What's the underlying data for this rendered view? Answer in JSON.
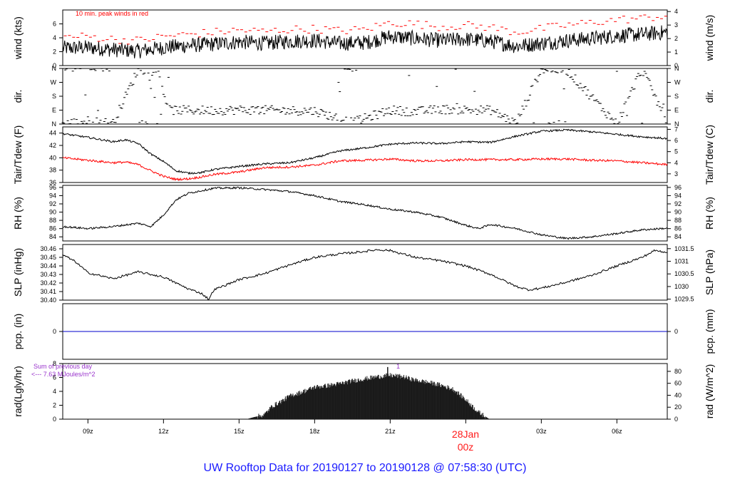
{
  "title": "UW Rooftop Data for 20190127  to  20190128 @ 07:58:30  (UTC)",
  "colors": {
    "line": "#000000",
    "peak": "#ff0000",
    "dew": "#ff0000",
    "precip": "#0000cc",
    "title": "#1a1aff",
    "rad_note": "#9933cc",
    "date": "#ff1a1a"
  },
  "x_axis": {
    "start_hour": 8,
    "end_hour": 32,
    "ticks": [
      {
        "hour": 9,
        "label": "09z"
      },
      {
        "hour": 12,
        "label": "12z"
      },
      {
        "hour": 15,
        "label": "15z"
      },
      {
        "hour": 18,
        "label": "18z"
      },
      {
        "hour": 21,
        "label": "21z"
      },
      {
        "hour": 24,
        "label": ""
      },
      {
        "hour": 27,
        "label": "03z"
      },
      {
        "hour": 30,
        "label": "06z"
      }
    ],
    "date_label": "28Jan",
    "date_sub": "00z"
  },
  "chart_data": [
    {
      "type": "line",
      "panel": "wind",
      "ylabel_left": "wind (kts)",
      "ylabel_right": "wind (m/s)",
      "yticks_left": [
        0,
        2,
        4,
        6
      ],
      "yticks_right": [
        0,
        1,
        2,
        3,
        4
      ],
      "ylim": [
        0,
        8
      ],
      "annotation": "10 min. peak winds in red",
      "series": [
        {
          "role": "wind",
          "x": [
            8,
            9,
            10,
            11,
            12,
            13,
            14,
            15,
            16,
            17,
            18,
            19,
            20,
            21,
            22,
            23,
            24,
            25,
            26,
            27,
            28,
            29,
            30,
            31,
            32
          ],
          "y": [
            2.5,
            2.6,
            2.3,
            2.1,
            2.6,
            2.9,
            3.1,
            3.4,
            3.2,
            3.5,
            3.6,
            3.2,
            3.3,
            4.2,
            3.9,
            3.6,
            3.8,
            3.5,
            2.8,
            3.2,
            3.6,
            3.9,
            4.3,
            4.5,
            4.8
          ]
        },
        {
          "role": "peak",
          "x": [
            8,
            9,
            10,
            11,
            12,
            13,
            14,
            15,
            16,
            17,
            18,
            19,
            20,
            21,
            22,
            23,
            24,
            25,
            26,
            27,
            28,
            29,
            30,
            31,
            32
          ],
          "y": [
            4.1,
            4.2,
            3.8,
            3.6,
            4.2,
            4.5,
            4.8,
            5.1,
            4.9,
            5.2,
            5.3,
            5.0,
            5.2,
            6.2,
            6.0,
            5.6,
            5.8,
            5.5,
            4.8,
            5.3,
            5.8,
            6.2,
            6.6,
            6.8,
            7.2
          ]
        }
      ]
    },
    {
      "type": "scatter",
      "panel": "dir",
      "ylabel_left": "dir.",
      "ylabel_right": "dir.",
      "ytick_labels": [
        "N",
        "E",
        "S",
        "W",
        "N"
      ],
      "ylim": [
        0,
        360
      ]
    },
    {
      "type": "line",
      "panel": "temp",
      "ylabel_left": "Tair/Tdew (F)",
      "ylabel_right": "Tair/Tdew (C)",
      "yticks_left": [
        36,
        38,
        40,
        42,
        44
      ],
      "yticks_right": [
        3,
        4,
        5,
        6,
        7
      ],
      "ylim": [
        36,
        45
      ],
      "series": [
        {
          "role": "air",
          "x": [
            8,
            9,
            10,
            10.5,
            11,
            11.5,
            12,
            12.5,
            13,
            13.5,
            14,
            15,
            16,
            17,
            18,
            19,
            20,
            21,
            22,
            23,
            24,
            25,
            26,
            27,
            28,
            29,
            30,
            31,
            32
          ],
          "y": [
            43.9,
            43.3,
            42.6,
            42.9,
            42.3,
            40.6,
            39.4,
            37.9,
            37.5,
            37.6,
            38.1,
            38.6,
            39.0,
            39.2,
            40.0,
            41.1,
            41.6,
            42.2,
            42.4,
            42.3,
            42.6,
            42.5,
            43.5,
            44.3,
            44.5,
            44.2,
            43.8,
            43.4,
            43.1
          ]
        },
        {
          "role": "dew",
          "x": [
            8,
            9,
            10,
            10.5,
            11,
            11.5,
            12,
            12.5,
            13,
            13.5,
            14,
            15,
            16,
            17,
            18,
            19,
            20,
            21,
            22,
            23,
            24,
            25,
            26,
            27,
            28,
            29,
            30,
            31,
            32
          ],
          "y": [
            40.0,
            39.6,
            39.2,
            39.3,
            38.9,
            37.9,
            37.0,
            36.5,
            36.6,
            36.9,
            37.3,
            37.7,
            38.4,
            38.5,
            38.8,
            39.5,
            39.6,
            39.8,
            39.5,
            39.5,
            39.7,
            39.7,
            39.7,
            39.8,
            39.8,
            39.6,
            39.5,
            39.2,
            38.9
          ]
        }
      ]
    },
    {
      "type": "line",
      "panel": "rh",
      "ylabel_left": "RH (%)",
      "ylabel_right": "RH (%)",
      "yticks": [
        84,
        86,
        88,
        90,
        92,
        94,
        96
      ],
      "ylim": [
        83,
        96.5
      ],
      "series": [
        {
          "role": "rh",
          "x": [
            8,
            9,
            10,
            11,
            11.5,
            12,
            12.5,
            13,
            13.5,
            14,
            15,
            16,
            17,
            18,
            19,
            20,
            21,
            22,
            23,
            24,
            24.5,
            25,
            26,
            27,
            28,
            29,
            30,
            31,
            32
          ],
          "y": [
            86.5,
            86.0,
            86.5,
            87.3,
            86.5,
            89.3,
            93.0,
            94.6,
            95.2,
            95.8,
            95.9,
            95.5,
            95.0,
            94.0,
            92.6,
            91.8,
            90.7,
            90.0,
            88.8,
            86.8,
            86.0,
            87.0,
            86.0,
            84.5,
            83.6,
            84.0,
            84.8,
            85.7,
            86.1
          ]
        }
      ]
    },
    {
      "type": "line",
      "panel": "slp",
      "ylabel_left": "SLP (inHg)",
      "ylabel_right": "SLP (hPa)",
      "yticks_left": [
        30.4,
        30.41,
        30.42,
        30.43,
        30.44,
        30.45,
        30.46
      ],
      "ytick_labels_left": [
        "30.40",
        "30.41",
        "30.42",
        "30.43",
        "30.44",
        "30.45",
        "30.46"
      ],
      "yticks_right": [
        1029.5,
        1030,
        1030.5,
        1031,
        1031.5
      ],
      "ylim": [
        30.4,
        30.465
      ],
      "series": [
        {
          "role": "slp",
          "x": [
            8,
            8.5,
            9,
            10,
            11,
            12,
            12.5,
            13,
            13.5,
            13.8,
            14,
            15,
            16,
            17,
            18,
            19,
            20,
            20.5,
            21,
            22,
            23,
            24,
            25,
            26,
            26.5,
            27,
            28,
            29,
            30,
            31,
            31.5,
            32
          ],
          "y": [
            30.453,
            30.445,
            30.432,
            30.425,
            30.433,
            30.427,
            30.42,
            30.413,
            30.408,
            30.401,
            30.412,
            30.424,
            30.431,
            30.441,
            30.45,
            30.454,
            30.457,
            30.459,
            30.458,
            30.45,
            30.446,
            30.44,
            30.43,
            30.416,
            30.412,
            30.414,
            30.421,
            30.429,
            30.44,
            30.45,
            30.458,
            30.456
          ]
        }
      ]
    },
    {
      "type": "line",
      "panel": "pcp",
      "ylabel_left": "pcp. (in)",
      "ylabel_right": "pcp. (mm)",
      "yticks_left": [
        0
      ],
      "yticks_right": [
        0
      ],
      "ylim": [
        -1,
        1
      ],
      "series": [
        {
          "role": "precip",
          "x": [
            8,
            32
          ],
          "y": [
            0,
            0
          ]
        }
      ]
    },
    {
      "type": "area",
      "panel": "rad",
      "ylabel_left": "rad(Lgly/hr)",
      "ylabel_right": "rad (W/m^2)",
      "yticks_left": [
        0,
        2,
        4,
        6,
        8
      ],
      "yticks_right": [
        0,
        20,
        40,
        60,
        80
      ],
      "ylim": [
        0,
        8
      ],
      "note_line1": "Sum of previous day",
      "note_line2": "<--- 7.63 MJoules/m^2",
      "marker_label": "1",
      "series": [
        {
          "role": "rad",
          "x": [
            15.3,
            15.6,
            16,
            16.3,
            16.7,
            17,
            17.5,
            18,
            18.5,
            19,
            19.5,
            20,
            20.5,
            21,
            21.5,
            22,
            22.5,
            23,
            23.5,
            24,
            24.5,
            24.9
          ],
          "y": [
            0,
            0.3,
            0.6,
            1.8,
            2.6,
            3.3,
            3.9,
            4.6,
            4.8,
            5.1,
            5.5,
            5.8,
            6.1,
            6.3,
            6.1,
            5.6,
            5.3,
            4.9,
            4.3,
            2.8,
            1.0,
            0.1
          ]
        }
      ]
    }
  ]
}
